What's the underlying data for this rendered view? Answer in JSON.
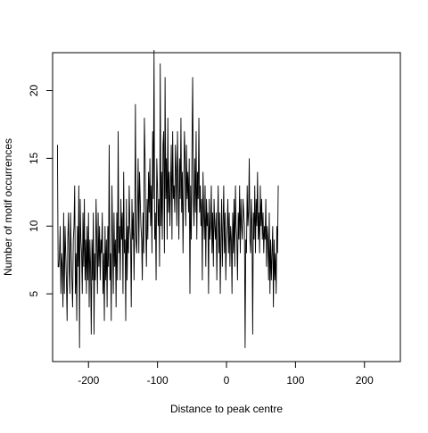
{
  "chart_data": {
    "type": "line",
    "title": "",
    "xlabel": "Distance to peak centre",
    "ylabel": "Number of motif occurrences",
    "xlim": [
      -252,
      252
    ],
    "ylim": [
      0,
      22.8
    ],
    "x_ticks": [
      -200,
      -100,
      0,
      100,
      200
    ],
    "x_tick_labels": [
      "-200",
      "-100",
      "0",
      "100",
      "200"
    ],
    "y_ticks": [
      5,
      10,
      15,
      20
    ],
    "y_tick_labels": [
      "5",
      "10",
      "15",
      "20"
    ],
    "grid": false,
    "legend": "none",
    "line_color": "#000000",
    "x_start": -245,
    "x_step": 1,
    "series": [
      {
        "values": [
          16,
          7,
          7,
          8,
          10,
          5,
          8,
          7,
          4,
          11,
          5,
          10,
          8,
          6,
          3,
          9,
          11,
          7,
          5,
          11,
          8,
          6,
          4,
          9,
          10,
          13,
          5,
          8,
          3,
          10,
          7,
          13,
          1,
          12,
          9,
          8,
          5,
          11,
          7,
          12,
          6,
          9,
          5,
          10,
          6,
          11,
          4,
          9,
          7,
          2,
          9,
          6,
          11,
          2,
          8,
          6,
          12,
          9,
          5,
          11,
          7,
          10,
          6,
          9,
          8,
          11,
          5,
          8,
          3,
          10,
          6,
          9,
          4,
          10,
          7,
          16,
          6,
          8,
          3,
          13,
          9,
          5,
          11,
          7,
          9,
          4,
          11,
          6,
          17,
          8,
          10,
          6,
          12,
          9,
          11,
          5,
          14,
          8,
          9,
          3,
          12,
          6,
          10,
          8,
          13,
          10,
          9,
          4,
          12,
          9,
          11,
          6,
          10,
          19,
          9,
          8,
          11,
          15,
          8,
          14,
          12,
          10,
          9,
          6,
          11,
          8,
          18,
          15,
          10,
          7,
          12,
          9,
          14,
          11,
          15,
          10,
          13,
          8,
          17,
          12,
          23,
          9,
          11,
          6,
          15,
          13,
          10,
          12,
          7,
          22,
          10,
          14,
          9,
          16,
          17,
          8,
          21,
          12,
          15,
          9,
          18,
          11,
          14,
          10,
          13,
          16,
          9,
          17,
          12,
          13,
          11,
          16,
          14,
          10,
          17,
          13,
          9,
          15,
          12,
          18,
          11,
          14,
          8,
          13,
          17,
          15,
          10,
          16,
          12,
          14,
          11,
          15,
          5,
          13,
          9,
          16,
          21,
          12,
          10,
          15,
          11,
          17,
          9,
          14,
          12,
          18,
          11,
          13,
          10,
          12,
          6,
          14,
          11,
          9,
          13,
          7,
          12,
          10,
          11,
          5,
          12,
          9,
          10,
          13,
          8,
          11,
          7,
          12,
          10,
          9,
          11,
          6,
          10,
          13,
          8,
          11,
          5,
          9,
          12,
          7,
          10,
          13,
          8,
          11,
          6,
          9,
          10,
          12,
          8,
          11,
          7,
          10,
          9,
          5,
          11,
          8,
          12,
          7,
          13,
          10,
          9,
          6,
          11,
          9,
          13,
          8,
          12,
          10,
          9,
          12,
          11,
          10,
          1,
          9,
          8,
          13,
          10,
          11,
          15,
          9,
          8,
          12,
          10,
          2,
          11,
          9,
          13,
          8,
          12,
          10,
          14,
          9,
          11,
          8,
          13,
          10,
          12,
          9,
          11,
          8,
          10,
          9,
          12,
          7,
          10,
          9,
          6,
          11,
          5,
          9,
          6,
          8,
          10,
          4,
          9,
          6,
          8,
          5,
          10,
          8,
          13
        ]
      }
    ]
  }
}
